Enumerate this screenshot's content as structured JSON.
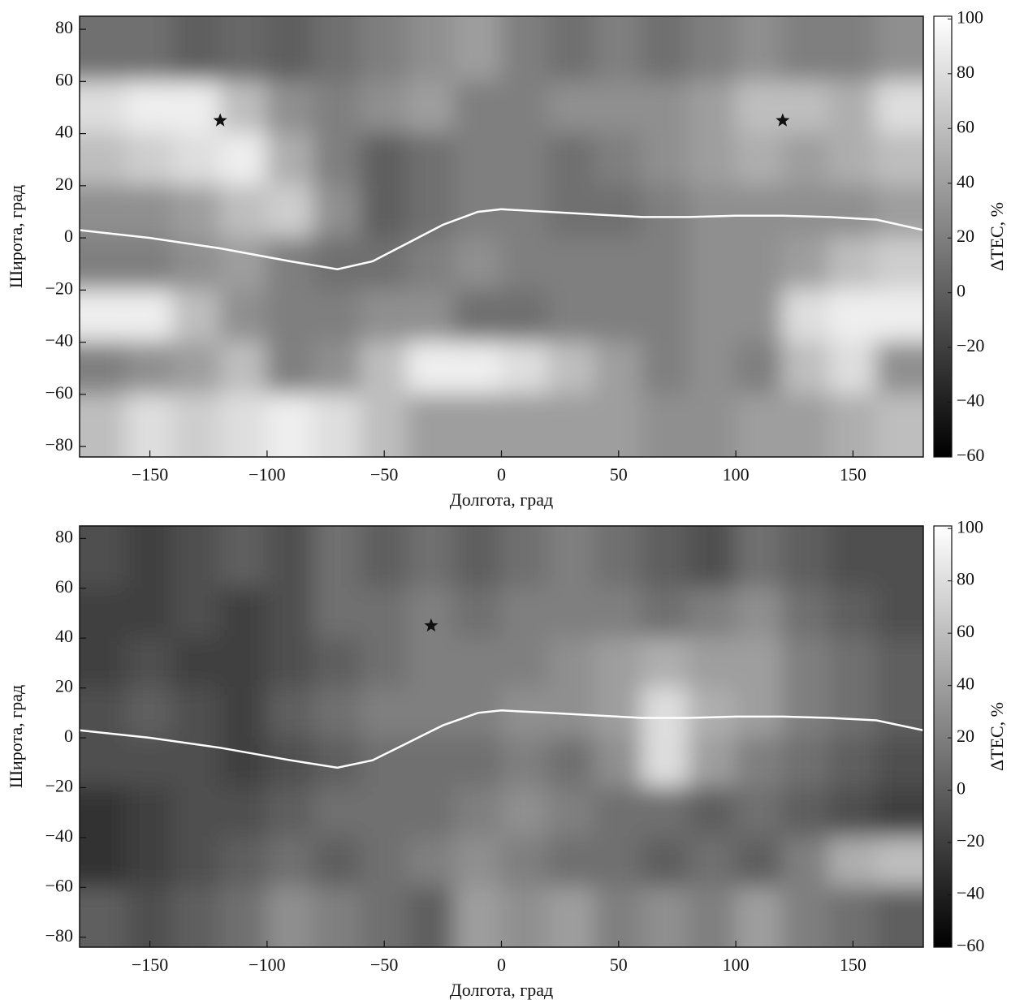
{
  "chart_data": [
    {
      "type": "heatmap",
      "xlabel": "Долгота, град",
      "ylabel": "Широта, град",
      "colorbar_label": "ΔTEC, %",
      "colormap": "gray",
      "xlim": [
        -180,
        180
      ],
      "ylim": [
        -84,
        85
      ],
      "xticks": [
        {
          "value": -150,
          "label": "−150"
        },
        {
          "value": -100,
          "label": "−100"
        },
        {
          "value": -50,
          "label": "−50"
        },
        0,
        50,
        100,
        150
      ],
      "yticks": [
        {
          "value": -80,
          "label": "−80"
        },
        {
          "value": -60,
          "label": "−60"
        },
        {
          "value": -40,
          "label": "−40"
        },
        {
          "value": -20,
          "label": "−20"
        },
        0,
        20,
        40,
        60,
        80
      ],
      "clim": [
        -60,
        101
      ],
      "cticks": [
        {
          "value": -60,
          "label": "−60"
        },
        {
          "value": -40,
          "label": "−40"
        },
        {
          "value": -20,
          "label": "−20"
        },
        0,
        20,
        40,
        60,
        80,
        100
      ],
      "x_edges": [
        -180,
        -160,
        -140,
        -120,
        -100,
        -80,
        -60,
        -40,
        -20,
        0,
        20,
        40,
        60,
        80,
        100,
        120,
        140,
        160,
        180
      ],
      "y_edges": [
        85,
        60,
        40,
        20,
        0,
        -20,
        -40,
        -60,
        -84
      ],
      "z": [
        [
          10,
          10,
          0,
          5,
          0,
          10,
          20,
          30,
          40,
          20,
          10,
          20,
          10,
          20,
          30,
          20,
          20,
          30
        ],
        [
          80,
          90,
          90,
          60,
          30,
          20,
          30,
          40,
          20,
          20,
          30,
          30,
          30,
          40,
          60,
          60,
          50,
          80
        ],
        [
          60,
          70,
          80,
          90,
          50,
          20,
          0,
          10,
          20,
          20,
          10,
          20,
          30,
          40,
          50,
          40,
          50,
          60
        ],
        [
          30,
          30,
          40,
          60,
          70,
          30,
          0,
          10,
          20,
          20,
          10,
          10,
          20,
          30,
          30,
          30,
          30,
          40
        ],
        [
          20,
          20,
          30,
          40,
          20,
          10,
          10,
          20,
          30,
          20,
          20,
          20,
          20,
          30,
          30,
          40,
          60,
          70
        ],
        [
          90,
          90,
          60,
          30,
          20,
          20,
          30,
          30,
          10,
          10,
          20,
          20,
          20,
          30,
          30,
          80,
          90,
          90
        ],
        [
          20,
          30,
          40,
          60,
          20,
          30,
          60,
          90,
          90,
          80,
          60,
          40,
          20,
          30,
          20,
          60,
          80,
          30
        ],
        [
          60,
          80,
          70,
          80,
          90,
          80,
          60,
          40,
          40,
          40,
          40,
          40,
          30,
          30,
          40,
          40,
          50,
          60
        ]
      ],
      "line": {
        "color": "#ffffff",
        "x": [
          -180,
          -150,
          -120,
          -90,
          -70,
          -55,
          -40,
          -25,
          -10,
          0,
          20,
          40,
          60,
          80,
          100,
          120,
          140,
          160,
          180
        ],
        "y": [
          3,
          0,
          -4,
          -9,
          -12,
          -9,
          -2,
          5,
          10,
          11,
          10,
          9,
          8,
          8,
          8.5,
          8.5,
          8,
          7,
          3
        ]
      },
      "markers": {
        "x": [
          -120,
          120
        ],
        "y": [
          45,
          45
        ],
        "color": "#111111"
      }
    },
    {
      "type": "heatmap",
      "xlabel": "Долгота, град",
      "ylabel": "Широта, град",
      "colorbar_label": "ΔTEC, %",
      "colormap": "gray",
      "xlim": [
        -180,
        180
      ],
      "ylim": [
        -84,
        85
      ],
      "xticks": [
        {
          "value": -150,
          "label": "−150"
        },
        {
          "value": -100,
          "label": "−100"
        },
        {
          "value": -50,
          "label": "−50"
        },
        0,
        50,
        100,
        150
      ],
      "yticks": [
        {
          "value": -80,
          "label": "−80"
        },
        {
          "value": -60,
          "label": "−60"
        },
        {
          "value": -40,
          "label": "−40"
        },
        {
          "value": -20,
          "label": "−20"
        },
        0,
        20,
        40,
        60,
        80
      ],
      "clim": [
        -60,
        101
      ],
      "cticks": [
        {
          "value": -60,
          "label": "−60"
        },
        {
          "value": -40,
          "label": "−40"
        },
        {
          "value": -20,
          "label": "−20"
        },
        0,
        20,
        40,
        60,
        80,
        100
      ],
      "x_edges": [
        -180,
        -160,
        -140,
        -120,
        -100,
        -80,
        -60,
        -40,
        -20,
        0,
        20,
        40,
        60,
        80,
        100,
        120,
        140,
        160,
        180
      ],
      "y_edges": [
        85,
        60,
        40,
        20,
        0,
        -20,
        -40,
        -60,
        -84
      ],
      "z": [
        [
          -10,
          -20,
          -10,
          0,
          -10,
          10,
          0,
          10,
          0,
          10,
          20,
          10,
          0,
          -10,
          10,
          0,
          -10,
          -10
        ],
        [
          -20,
          -20,
          -10,
          -20,
          -10,
          10,
          10,
          20,
          10,
          20,
          20,
          20,
          10,
          20,
          30,
          10,
          0,
          -10
        ],
        [
          -20,
          -10,
          -20,
          -20,
          -10,
          0,
          10,
          20,
          20,
          20,
          30,
          40,
          50,
          40,
          40,
          20,
          10,
          0
        ],
        [
          -10,
          0,
          -10,
          -20,
          0,
          10,
          20,
          20,
          20,
          30,
          30,
          40,
          80,
          50,
          40,
          20,
          10,
          0
        ],
        [
          -10,
          -10,
          -10,
          -20,
          -10,
          0,
          10,
          10,
          10,
          20,
          10,
          30,
          80,
          40,
          20,
          10,
          0,
          -10
        ],
        [
          -30,
          -20,
          -10,
          -10,
          0,
          10,
          10,
          10,
          20,
          30,
          20,
          10,
          10,
          0,
          10,
          0,
          -10,
          -20
        ],
        [
          -30,
          -20,
          -10,
          0,
          10,
          0,
          10,
          20,
          30,
          20,
          10,
          10,
          0,
          10,
          0,
          20,
          50,
          60
        ],
        [
          0,
          -10,
          0,
          10,
          30,
          20,
          10,
          0,
          40,
          30,
          40,
          20,
          30,
          20,
          40,
          20,
          10,
          0
        ]
      ],
      "line": {
        "color": "#ffffff",
        "x": [
          -180,
          -150,
          -120,
          -90,
          -70,
          -55,
          -40,
          -25,
          -10,
          0,
          20,
          40,
          60,
          80,
          100,
          120,
          140,
          160,
          180
        ],
        "y": [
          3,
          0,
          -4,
          -9,
          -12,
          -9,
          -2,
          5,
          10,
          11,
          10,
          9,
          8,
          8,
          8.5,
          8.5,
          8,
          7,
          3
        ]
      },
      "markers": {
        "x": [
          -30
        ],
        "y": [
          45
        ],
        "color": "#111111"
      }
    }
  ]
}
